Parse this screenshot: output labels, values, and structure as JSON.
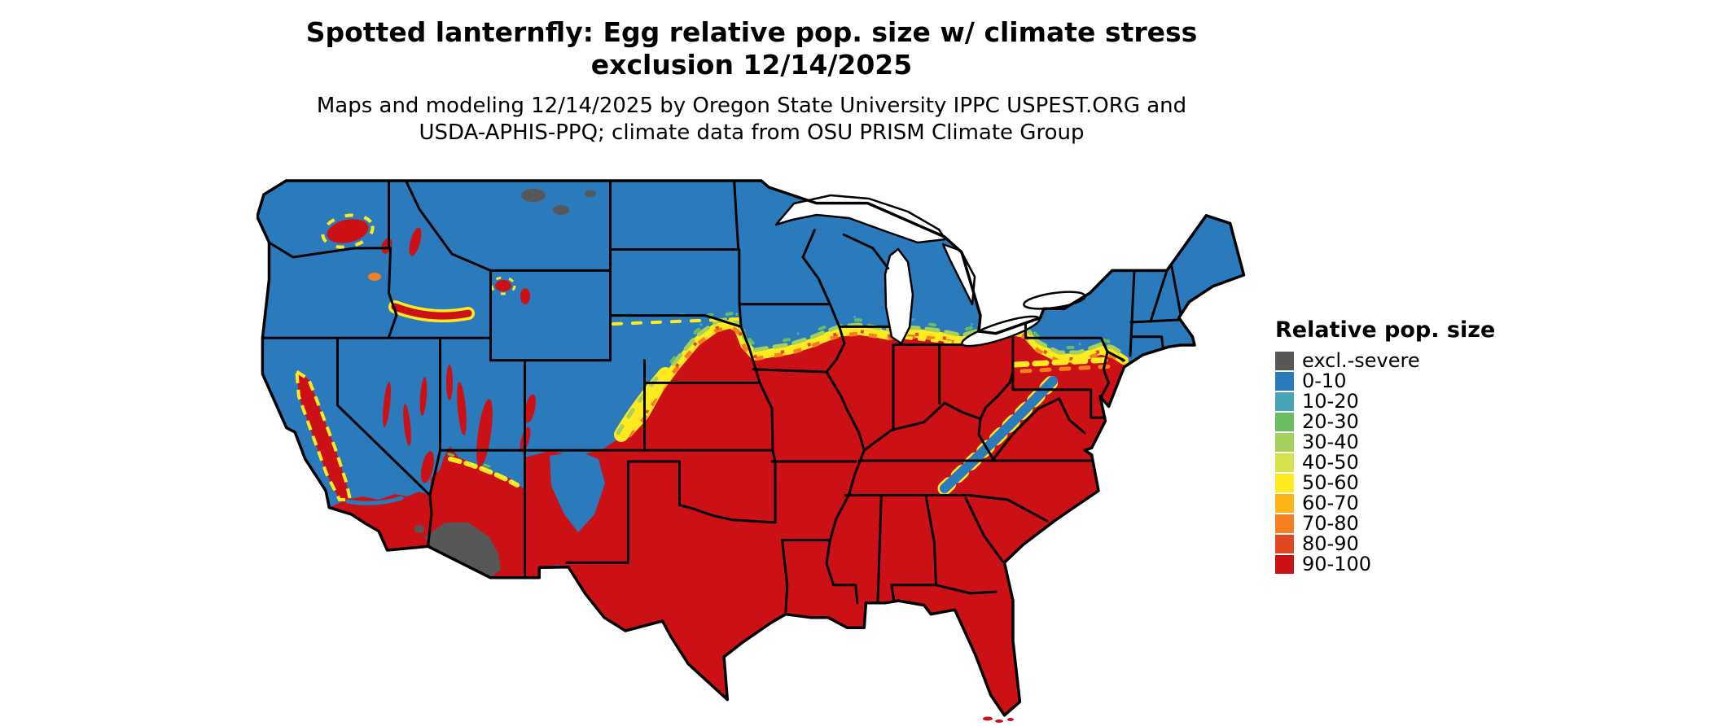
{
  "header": {
    "title_line1": "Spotted lanternfly: Egg relative pop. size w/ climate stress",
    "title_line2": "exclusion 12/14/2025",
    "subtitle_line1": "Maps and modeling 12/14/2025 by Oregon State University IPPC USPEST.ORG and",
    "subtitle_line2": "USDA-APHIS-PPQ; climate data from OSU PRISM Climate Group"
  },
  "legend": {
    "title": "Relative pop. size",
    "entries": [
      {
        "label": "excl.-severe",
        "color": "#575757"
      },
      {
        "label": "0-10",
        "color": "#2b7abc"
      },
      {
        "label": "10-20",
        "color": "#46a4b4"
      },
      {
        "label": "20-30",
        "color": "#68bd63"
      },
      {
        "label": "30-40",
        "color": "#a5d05c"
      },
      {
        "label": "40-50",
        "color": "#d7e14d"
      },
      {
        "label": "50-60",
        "color": "#ffe91f"
      },
      {
        "label": "60-70",
        "color": "#fdb515"
      },
      {
        "label": "70-80",
        "color": "#f57e20"
      },
      {
        "label": "80-90",
        "color": "#e0471f"
      },
      {
        "label": "90-100",
        "color": "#cb1116"
      }
    ]
  },
  "map": {
    "region": "Continental United States",
    "border_color": "#000000",
    "water_color": "#ffffff",
    "dominant_low_zone": "northern states (blue, 0-10)",
    "dominant_high_zone": "southern and southeastern states (red, 90-100)",
    "exclusion_zone": "southwestern Arizona desert and small northern patches (gray, excl.-severe)"
  }
}
